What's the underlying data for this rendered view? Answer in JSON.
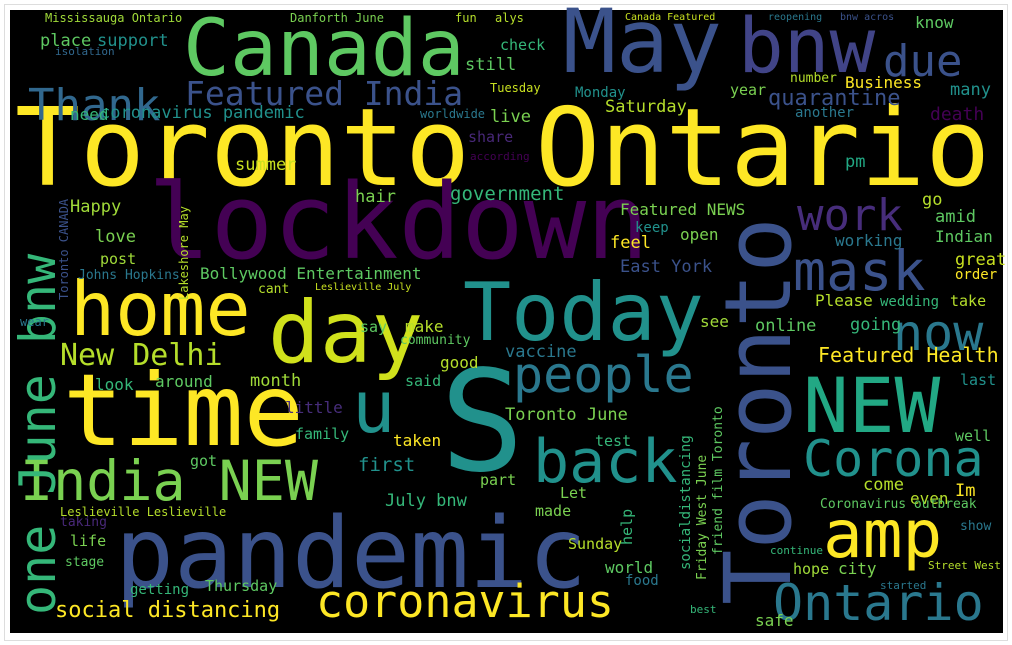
{
  "words": [
    {
      "text": "Toronto Ontario",
      "color": "#fde725"
    },
    {
      "text": "lockdown",
      "color": "#440154"
    },
    {
      "text": "pandemic",
      "color": "#3b528b"
    },
    {
      "text": "Toronto",
      "color": "#3b528b"
    },
    {
      "text": "Today",
      "color": "#21918c"
    },
    {
      "text": "S",
      "color": "#21918c"
    },
    {
      "text": "time",
      "color": "#fde725"
    },
    {
      "text": "day",
      "color": "#d0e11c"
    },
    {
      "text": "home",
      "color": "#fde725"
    },
    {
      "text": "Canada",
      "color": "#5ec962"
    },
    {
      "text": "May",
      "color": "#3b528b"
    },
    {
      "text": "bnw",
      "color": "#414487"
    },
    {
      "text": "due",
      "color": "#3b528b"
    },
    {
      "text": "Thank",
      "color": "#31688e"
    },
    {
      "text": "Featured India",
      "color": "#3b528b"
    },
    {
      "text": "u",
      "color": "#21918c"
    },
    {
      "text": "people",
      "color": "#2a788e"
    },
    {
      "text": "back",
      "color": "#21918c"
    },
    {
      "text": "mask",
      "color": "#3b528b"
    },
    {
      "text": "work",
      "color": "#472d7b"
    },
    {
      "text": "now",
      "color": "#2a788e"
    },
    {
      "text": "NEW",
      "color": "#22a884"
    },
    {
      "text": "Corona",
      "color": "#21918c"
    },
    {
      "text": "amp",
      "color": "#fde725"
    },
    {
      "text": "Ontario",
      "color": "#2a788e"
    },
    {
      "text": "coronavirus",
      "color": "#fde725"
    },
    {
      "text": "India NEW",
      "color": "#7ad151"
    },
    {
      "text": "one June bnw",
      "color": "#35b779"
    },
    {
      "text": "New Delhi",
      "color": "#b5de2b"
    },
    {
      "text": "social distancing",
      "color": "#fde725"
    },
    {
      "text": "Featured Health",
      "color": "#fde725"
    },
    {
      "text": "quarantine",
      "color": "#3b528b"
    },
    {
      "text": "Mississauga Ontario",
      "color": "#a0da39"
    },
    {
      "text": "Danforth June",
      "color": "#7ad151"
    },
    {
      "text": "fun",
      "color": "#b5de2b"
    },
    {
      "text": "alys",
      "color": "#b5de2b"
    },
    {
      "text": "Canada Featured",
      "color": "#c8e020"
    },
    {
      "text": "reopening",
      "color": "#2a788e"
    },
    {
      "text": "bnw acros",
      "color": "#3b528b"
    },
    {
      "text": "know",
      "color": "#5ec962"
    },
    {
      "text": "isolation",
      "color": "#31688e"
    },
    {
      "text": "place",
      "color": "#5ec962"
    },
    {
      "text": "support",
      "color": "#21918c"
    },
    {
      "text": "check",
      "color": "#35b779"
    },
    {
      "text": "still",
      "color": "#5ec962"
    },
    {
      "text": "year",
      "color": "#7ad151"
    },
    {
      "text": "Tuesday",
      "color": "#c8e020"
    },
    {
      "text": "Monday",
      "color": "#21918c"
    },
    {
      "text": "number",
      "color": "#b5de2b"
    },
    {
      "text": "Business",
      "color": "#fde725"
    },
    {
      "text": "many",
      "color": "#21918c"
    },
    {
      "text": "death",
      "color": "#440154"
    },
    {
      "text": "another",
      "color": "#2a788e"
    },
    {
      "text": "coronavirus pandemic",
      "color": "#21918c"
    },
    {
      "text": "need",
      "color": "#35b779"
    },
    {
      "text": "worldwide",
      "color": "#2a788e"
    },
    {
      "text": "live",
      "color": "#7ad151"
    },
    {
      "text": "Saturday",
      "color": "#b5de2b"
    },
    {
      "text": "share",
      "color": "#482878"
    },
    {
      "text": "according",
      "color": "#440154"
    },
    {
      "text": "pm",
      "color": "#22a884"
    },
    {
      "text": "summer",
      "color": "#c8e020"
    },
    {
      "text": "hair",
      "color": "#7ad151"
    },
    {
      "text": "government",
      "color": "#35b779"
    },
    {
      "text": "Happy",
      "color": "#a0da39"
    },
    {
      "text": "Featured NEWS",
      "color": "#7ad151"
    },
    {
      "text": "keep",
      "color": "#21918c"
    },
    {
      "text": "go",
      "color": "#b5de2b"
    },
    {
      "text": "amid",
      "color": "#5ec962"
    },
    {
      "text": "Indian",
      "color": "#5ec962"
    },
    {
      "text": "love",
      "color": "#7ad151"
    },
    {
      "text": "feel",
      "color": "#fde725"
    },
    {
      "text": "open",
      "color": "#7ad151"
    },
    {
      "text": "working",
      "color": "#2a788e"
    },
    {
      "text": "post",
      "color": "#a0da39"
    },
    {
      "text": "Johns Hopkins",
      "color": "#2a788e"
    },
    {
      "text": "Bollywood Entertainment",
      "color": "#5ec962"
    },
    {
      "text": "East York",
      "color": "#3b528b"
    },
    {
      "text": "great",
      "color": "#c8e020"
    },
    {
      "text": "order",
      "color": "#fde725"
    },
    {
      "text": "Please",
      "color": "#b5de2b"
    },
    {
      "text": "wedding",
      "color": "#35b779"
    },
    {
      "text": "take",
      "color": "#b5de2b"
    },
    {
      "text": "say",
      "color": "#5ec962"
    },
    {
      "text": "make",
      "color": "#b5de2b"
    },
    {
      "text": "community",
      "color": "#5ec962"
    },
    {
      "text": "see",
      "color": "#a0da39"
    },
    {
      "text": "online",
      "color": "#5ec962"
    },
    {
      "text": "going",
      "color": "#35b779"
    },
    {
      "text": "good",
      "color": "#b5de2b"
    },
    {
      "text": "vaccine",
      "color": "#2a788e"
    },
    {
      "text": "look",
      "color": "#35b779"
    },
    {
      "text": "around",
      "color": "#5ec962"
    },
    {
      "text": "month",
      "color": "#a0da39"
    },
    {
      "text": "said",
      "color": "#35b779"
    },
    {
      "text": "last",
      "color": "#21918c"
    },
    {
      "text": "little",
      "color": "#472d7b"
    },
    {
      "text": "Toronto June",
      "color": "#7ad151"
    },
    {
      "text": "family",
      "color": "#35b779"
    },
    {
      "text": "taken",
      "color": "#fde725"
    },
    {
      "text": "test",
      "color": "#35b779"
    },
    {
      "text": "first",
      "color": "#21918c"
    },
    {
      "text": "got",
      "color": "#5ec962"
    },
    {
      "text": "well",
      "color": "#5ec962"
    },
    {
      "text": "part",
      "color": "#7ad151"
    },
    {
      "text": "come",
      "color": "#b5de2b"
    },
    {
      "text": "Im",
      "color": "#fde725"
    },
    {
      "text": "July bnw",
      "color": "#35b779"
    },
    {
      "text": "even",
      "color": "#b5de2b"
    },
    {
      "text": "Let",
      "color": "#7ad151"
    },
    {
      "text": "made",
      "color": "#7ad151"
    },
    {
      "text": "Leslieville Leslieville",
      "color": "#b5de2b"
    },
    {
      "text": "Coronavirus outbreak",
      "color": "#5ec962"
    },
    {
      "text": "taking",
      "color": "#482878"
    },
    {
      "text": "life",
      "color": "#7ad151"
    },
    {
      "text": "show",
      "color": "#2a788e"
    },
    {
      "text": "Sunday",
      "color": "#b5de2b"
    },
    {
      "text": "stage",
      "color": "#5ec962"
    },
    {
      "text": "hope",
      "color": "#a0da39"
    },
    {
      "text": "city",
      "color": "#7ad151"
    },
    {
      "text": "world",
      "color": "#5ec962"
    },
    {
      "text": "getting",
      "color": "#35b779"
    },
    {
      "text": "Thursday",
      "color": "#5ec962"
    },
    {
      "text": "food",
      "color": "#2a788e"
    },
    {
      "text": "safe",
      "color": "#7ad151"
    },
    {
      "text": "best",
      "color": "#35b779"
    },
    {
      "text": "Street West",
      "color": "#b5de2b"
    },
    {
      "text": "started",
      "color": "#2a788e"
    },
    {
      "text": "help",
      "color": "#35b779"
    },
    {
      "text": "Lakeshore May",
      "color": "#b5de2b"
    },
    {
      "text": "socialdistancing",
      "color": "#35b779"
    },
    {
      "text": "Friday West June",
      "color": "#7ad151"
    },
    {
      "text": "friend film Toronto",
      "color": "#5ec962"
    },
    {
      "text": "Toronto CANADA",
      "color": "#3b528b"
    },
    {
      "text": "cant",
      "color": "#b5de2b"
    },
    {
      "text": "Leslieville July",
      "color": "#c8e020"
    },
    {
      "text": "wear",
      "color": "#2a788e"
    },
    {
      "text": "continue",
      "color": "#35b779"
    }
  ]
}
